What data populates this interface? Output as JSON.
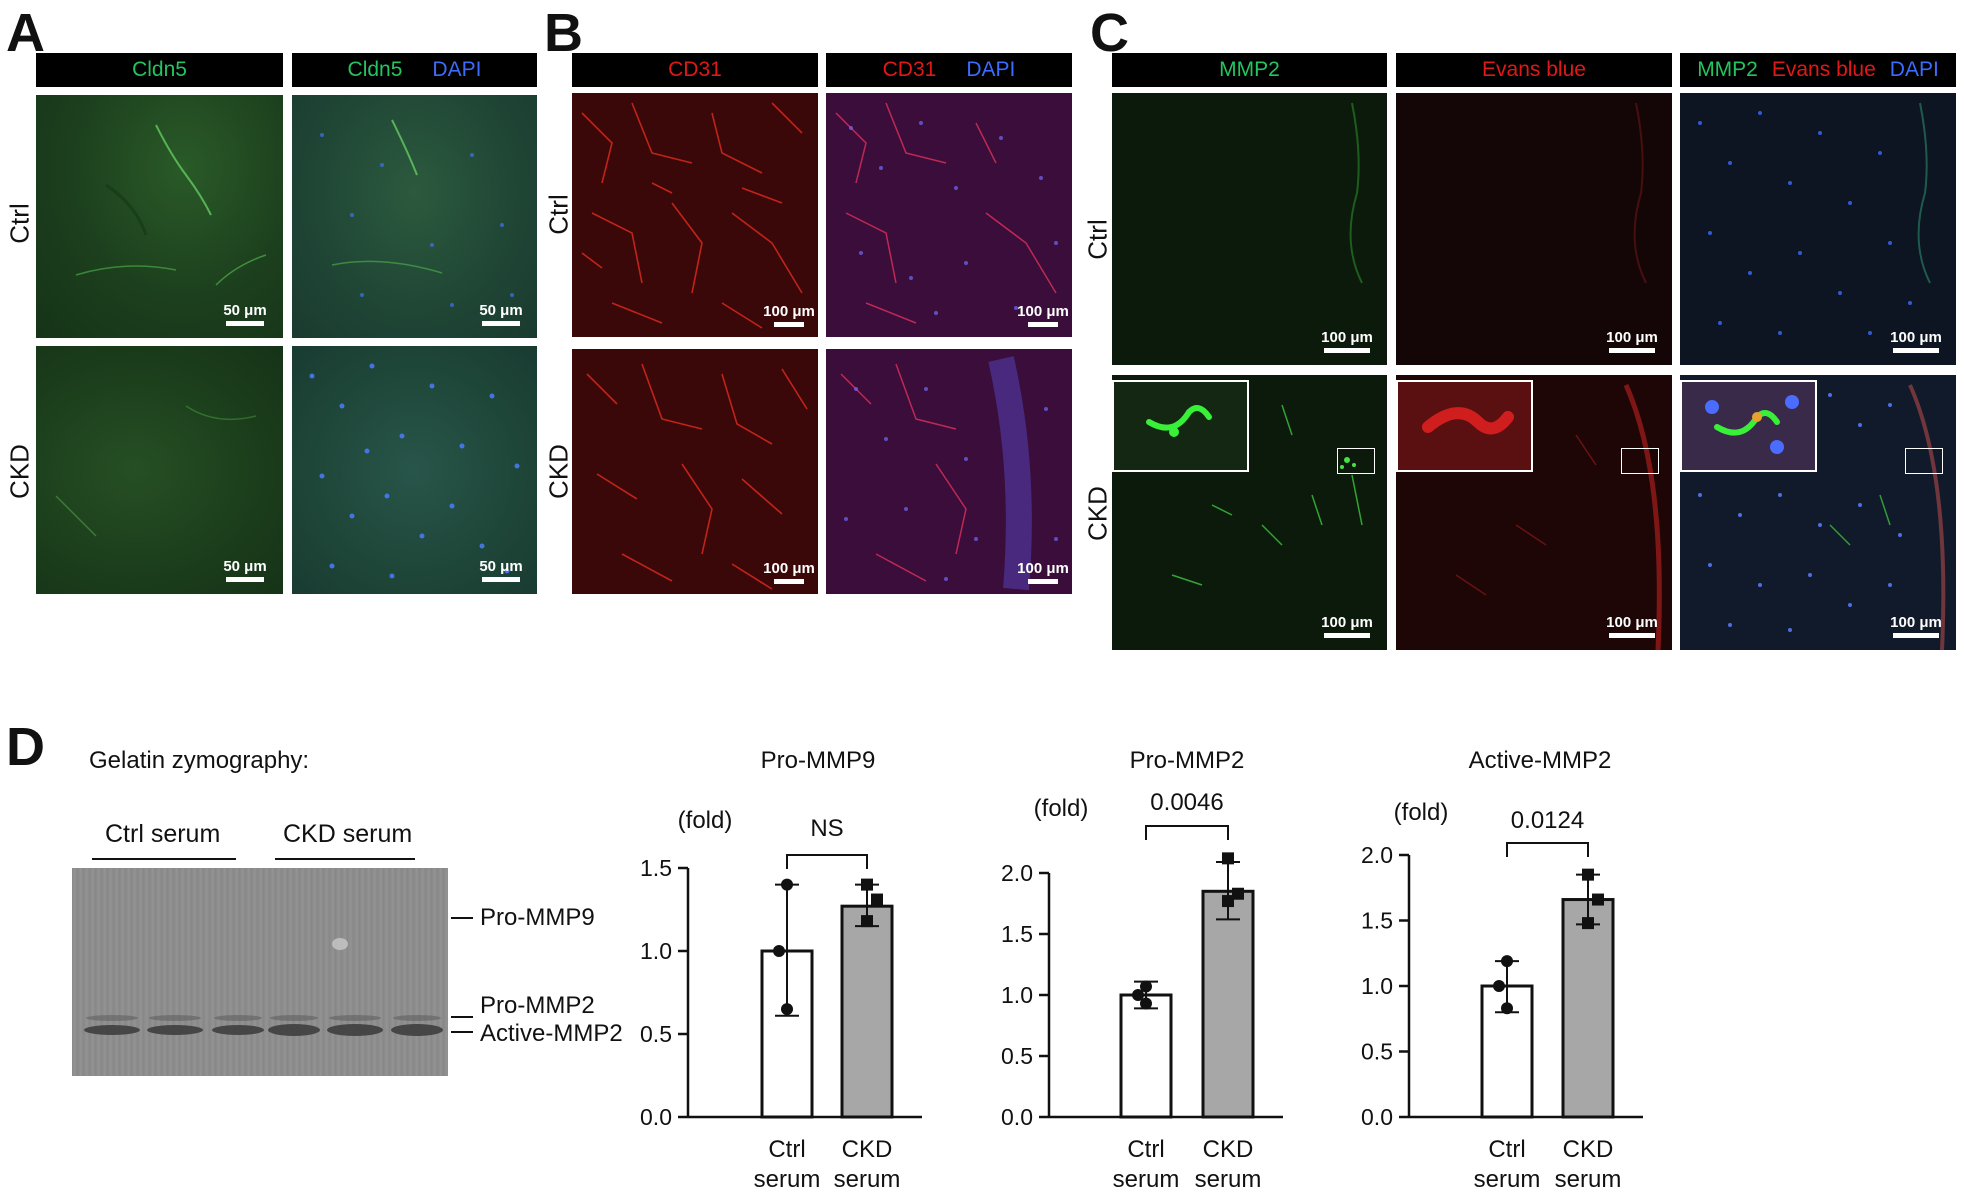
{
  "panels": {
    "A": {
      "letter": "A",
      "headers": [
        {
          "segments": [
            {
              "text": "Cldn5",
              "color": "#22c55e"
            }
          ]
        },
        {
          "segments": [
            {
              "text": "Cldn5",
              "color": "#22c55e"
            },
            {
              "text": "DAPI",
              "color": "#3b6cff"
            }
          ]
        }
      ],
      "rows": [
        "Ctrl",
        "CKD"
      ],
      "scale": "50 μm"
    },
    "B": {
      "letter": "B",
      "headers": [
        {
          "segments": [
            {
              "text": "CD31",
              "color": "#e01818"
            }
          ]
        },
        {
          "segments": [
            {
              "text": "CD31",
              "color": "#e01818"
            },
            {
              "text": "DAPI",
              "color": "#3b6cff"
            }
          ]
        }
      ],
      "rows": [
        "Ctrl",
        "CKD"
      ],
      "scale": "100 μm"
    },
    "C": {
      "letter": "C",
      "headers": [
        {
          "segments": [
            {
              "text": "MMP2",
              "color": "#22c55e"
            }
          ]
        },
        {
          "segments": [
            {
              "text": "Evans blue",
              "color": "#e01818"
            }
          ]
        },
        {
          "segments": [
            {
              "text": "MMP2",
              "color": "#22c55e"
            },
            {
              "text": "Evans blue",
              "color": "#e01818"
            },
            {
              "text": "DAPI",
              "color": "#3b6cff"
            }
          ]
        }
      ],
      "rows": [
        "Ctrl",
        "CKD"
      ],
      "scale": "100 μm"
    },
    "D": {
      "letter": "D",
      "zymography_title": "Gelatin zymography:",
      "lane_groups": [
        "Ctrl serum",
        "CKD serum"
      ],
      "band_labels": [
        "Pro-MMP9",
        "Pro-MMP2",
        "Active-MMP2"
      ]
    }
  },
  "chart_data": [
    {
      "type": "bar",
      "title": "Pro-MMP9",
      "ylabel": "(fold)",
      "categories": [
        "Ctrl serum",
        "CKD serum"
      ],
      "category_lines": [
        [
          "Ctrl",
          "serum"
        ],
        [
          "CKD",
          "serum"
        ]
      ],
      "values": [
        1.0,
        1.27
      ],
      "error_low": [
        0.61,
        1.15
      ],
      "error_high": [
        1.4,
        1.4
      ],
      "points": [
        [
          1.4,
          1.0,
          0.65
        ],
        [
          1.4,
          1.31,
          1.18
        ]
      ],
      "ylim": [
        0,
        1.5
      ],
      "ticks": [
        "0.0",
        "0.5",
        "1.0",
        "1.5"
      ],
      "tick_values": [
        0,
        0.5,
        1.0,
        1.5
      ],
      "significance": "NS",
      "bar_colors": [
        "#ffffff",
        "#a7a7a7"
      ]
    },
    {
      "type": "bar",
      "title": "Pro-MMP2",
      "ylabel": "(fold)",
      "categories": [
        "Ctrl serum",
        "CKD serum"
      ],
      "category_lines": [
        [
          "Ctrl",
          "serum"
        ],
        [
          "CKD",
          "serum"
        ]
      ],
      "values": [
        1.0,
        1.85
      ],
      "error_low": [
        0.89,
        1.62
      ],
      "error_high": [
        1.11,
        2.09
      ],
      "points": [
        [
          1.07,
          1.0,
          0.93
        ],
        [
          2.12,
          1.83,
          1.77
        ]
      ],
      "ylim": [
        0,
        2.0
      ],
      "ticks": [
        "0.0",
        "0.5",
        "1.0",
        "1.5",
        "2.0"
      ],
      "tick_values": [
        0,
        0.5,
        1.0,
        1.5,
        2.0
      ],
      "significance": "0.0046",
      "bar_colors": [
        "#ffffff",
        "#a7a7a7"
      ]
    },
    {
      "type": "bar",
      "title": "Active-MMP2",
      "ylabel": "(fold)",
      "categories": [
        "Ctrl serum",
        "CKD serum"
      ],
      "category_lines": [
        [
          "Ctrl",
          "serum"
        ],
        [
          "CKD",
          "serum"
        ]
      ],
      "values": [
        1.0,
        1.66
      ],
      "error_low": [
        0.8,
        1.47
      ],
      "error_high": [
        1.19,
        1.85
      ],
      "points": [
        [
          1.19,
          1.0,
          0.83
        ],
        [
          1.85,
          1.66,
          1.48
        ]
      ],
      "ylim": [
        0,
        2.0
      ],
      "ticks": [
        "0.0",
        "0.5",
        "1.0",
        "1.5",
        "2.0"
      ],
      "tick_values": [
        0,
        0.5,
        1.0,
        1.5,
        2.0
      ],
      "significance": "0.0124",
      "bar_colors": [
        "#ffffff",
        "#a7a7a7"
      ]
    }
  ]
}
